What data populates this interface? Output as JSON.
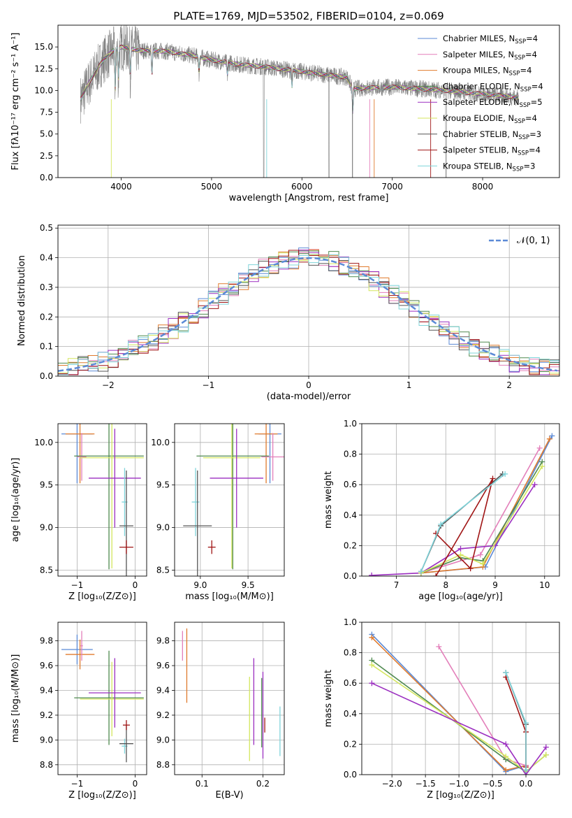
{
  "colors": {
    "chabrier_miles": "#5b8ad6",
    "salpeter_miles": "#e37fba",
    "kroupa_miles": "#e07b2e",
    "chabrier_elodie": "#4f8a4f",
    "salpeter_elodie": "#9b2fc0",
    "kroupa_elodie": "#d4e65e",
    "chabrier_stelib": "#555555",
    "salpeter_stelib": "#a01515",
    "kroupa_stelib": "#7fd4da",
    "spectrum": "#808080"
  },
  "chart_data": [
    {
      "id": "spectrum",
      "type": "line",
      "title": "PLATE=1769, MJD=53502, FIBERID=0104, z=0.069",
      "xlabel": "wavelength [Angstrom, rest frame]",
      "ylabel": "Flux [fλ10⁻¹⁷ erg cm⁻² s⁻¹ A⁻¹]",
      "xlim": [
        3300,
        8850
      ],
      "ylim": [
        0,
        17.5
      ],
      "xticks": [
        "4000",
        "5000",
        "6000",
        "7000",
        "8000"
      ],
      "yticks": [
        "0.0",
        "2.5",
        "5.0",
        "7.5",
        "10.0",
        "12.5",
        "15.0"
      ],
      "legend_position": "upper-right",
      "legend": [
        {
          "key": "chabrier_miles",
          "label": "Chabrier MILES, N",
          "sub": "SSP",
          "suffix": "=4"
        },
        {
          "key": "salpeter_miles",
          "label": "Salpeter MILES, N",
          "sub": "SSP",
          "suffix": "=4"
        },
        {
          "key": "kroupa_miles",
          "label": "Kroupa MILES, N",
          "sub": "SSP",
          "suffix": "=4"
        },
        {
          "key": "chabrier_elodie",
          "label": "Chabrier ELODIE, N",
          "sub": "SSP",
          "suffix": "=4"
        },
        {
          "key": "salpeter_elodie",
          "label": "Salpeter ELODIE, N",
          "sub": "SSP",
          "suffix": "=5"
        },
        {
          "key": "kroupa_elodie",
          "label": "Kroupa ELODIE, N",
          "sub": "SSP",
          "suffix": "=4"
        },
        {
          "key": "chabrier_stelib",
          "label": "Chabrier STELIB, N",
          "sub": "SSP",
          "suffix": "=3"
        },
        {
          "key": "salpeter_stelib",
          "label": "Salpeter STELIB, N",
          "sub": "SSP",
          "suffix": "=4"
        },
        {
          "key": "kroupa_stelib",
          "label": "Kroupa STELIB, N",
          "sub": "SSP",
          "suffix": "=3"
        }
      ],
      "continuum": {
        "x": [
          3550,
          3650,
          3800,
          3900,
          4000,
          4200,
          4500,
          4800,
          5000,
          5300,
          5600,
          5900,
          6200,
          6500,
          6560,
          6700,
          7000,
          7300,
          7600,
          8000,
          8400
        ],
        "y": [
          9.0,
          11.0,
          13.5,
          14.5,
          15.0,
          14.6,
          14.5,
          14.0,
          13.5,
          13.0,
          12.7,
          12.3,
          11.9,
          11.5,
          10.2,
          10.3,
          10.4,
          10.2,
          10.0,
          9.6,
          9.2
        ]
      }
    },
    {
      "id": "residuals",
      "type": "line",
      "xlabel": "(data-model)/error",
      "ylabel": "Normed distribution",
      "xlim": [
        -2.5,
        2.5
      ],
      "ylim": [
        0,
        0.51
      ],
      "xticks": [
        "−2",
        "−1",
        "0",
        "1",
        "2"
      ],
      "yticks": [
        "0.0",
        "0.1",
        "0.2",
        "0.3",
        "0.4",
        "0.5"
      ],
      "grid": true,
      "legend_position": "upper-right",
      "reference_label": "𝒩(0, 1)",
      "reference": {
        "mean": 0,
        "sigma": 1
      }
    },
    {
      "id": "age_vs_Z",
      "type": "scatter",
      "xlabel": "Z [log₁₀(Z/Z⊙)]",
      "ylabel": "age  [log₁₀(age/yr)]",
      "xlim": [
        -1.33,
        0.2
      ],
      "ylim": [
        8.43,
        10.22
      ],
      "xticks": [
        "−1",
        "0"
      ],
      "yticks": [
        "8.5",
        "9.0",
        "9.5",
        "10.0"
      ],
      "grid": true,
      "points": [
        {
          "key": "chabrier_miles",
          "x": -1.0,
          "y": 10.1,
          "xerr": 0.27,
          "yerr": 0.58
        },
        {
          "key": "kroupa_miles",
          "x": -0.95,
          "y": 10.1,
          "xerr": 0.25,
          "yerr": 0.58
        },
        {
          "key": "salpeter_miles",
          "x": -0.92,
          "y": 9.83,
          "xerr": 0.08,
          "yerr": 0.28
        },
        {
          "key": "chabrier_elodie",
          "x": -0.45,
          "y": 9.84,
          "xerr": 0.6,
          "yerr": 1.33
        },
        {
          "key": "kroupa_elodie",
          "x": -0.4,
          "y": 9.82,
          "xerr": 0.55,
          "yerr": 1.3
        },
        {
          "key": "salpeter_elodie",
          "x": -0.35,
          "y": 9.58,
          "xerr": 0.45,
          "yerr": 0.58
        },
        {
          "key": "kroupa_stelib",
          "x": -0.18,
          "y": 9.3,
          "xerr": 0.05,
          "yerr": 0.4
        },
        {
          "key": "chabrier_stelib",
          "x": -0.15,
          "y": 9.02,
          "xerr": 0.12,
          "yerr": 0.65
        },
        {
          "key": "salpeter_stelib",
          "x": -0.15,
          "y": 8.77,
          "xerr": 0.12,
          "yerr": 0.08
        }
      ]
    },
    {
      "id": "age_vs_mass",
      "type": "scatter",
      "xlabel": "mass [log₁₀(M/M⊙)]",
      "ylabel": "",
      "xlim": [
        8.73,
        9.88
      ],
      "ylim": [
        8.43,
        10.22
      ],
      "xticks": [
        "9.0",
        "9.5"
      ],
      "yticks": [
        "8.5",
        "9.0",
        "9.5",
        "10.0"
      ],
      "grid": true,
      "points": [
        {
          "key": "chabrier_miles",
          "x": 9.73,
          "y": 10.1,
          "xerr": 0.12,
          "yerr": 0.58
        },
        {
          "key": "kroupa_miles",
          "x": 9.69,
          "y": 10.1,
          "xerr": 0.12,
          "yerr": 0.58
        },
        {
          "key": "salpeter_miles",
          "x": 9.76,
          "y": 9.83,
          "xerr": 0.12,
          "yerr": 0.28
        },
        {
          "key": "chabrier_elodie",
          "x": 9.34,
          "y": 9.84,
          "xerr": 0.38,
          "yerr": 1.33
        },
        {
          "key": "kroupa_elodie",
          "x": 9.33,
          "y": 9.82,
          "xerr": 0.3,
          "yerr": 1.3
        },
        {
          "key": "salpeter_elodie",
          "x": 9.38,
          "y": 9.58,
          "xerr": 0.28,
          "yerr": 0.58
        },
        {
          "key": "kroupa_stelib",
          "x": 8.95,
          "y": 9.3,
          "xerr": 0.04,
          "yerr": 0.4
        },
        {
          "key": "chabrier_stelib",
          "x": 8.97,
          "y": 9.02,
          "xerr": 0.15,
          "yerr": 0.65
        },
        {
          "key": "salpeter_stelib",
          "x": 9.12,
          "y": 8.77,
          "xerr": 0.04,
          "yerr": 0.08
        }
      ]
    },
    {
      "id": "massweight_vs_age",
      "type": "line",
      "xlabel": "age  [log₁₀(age/yr)]",
      "ylabel": "mass weight",
      "xlim": [
        6.3,
        10.3
      ],
      "ylim": [
        0,
        1
      ],
      "xticks": [
        "7",
        "8",
        "9",
        "10"
      ],
      "yticks": [
        "0.0",
        "0.2",
        "0.4",
        "0.6",
        "0.8",
        "1.0"
      ],
      "grid": true,
      "series": [
        {
          "key": "chabrier_miles",
          "x": [
            7.5,
            8.8,
            10.15
          ],
          "y": [
            0.02,
            0.06,
            0.92
          ]
        },
        {
          "key": "salpeter_miles",
          "x": [
            7.5,
            8.7,
            9.9
          ],
          "y": [
            0.02,
            0.14,
            0.84
          ]
        },
        {
          "key": "kroupa_miles",
          "x": [
            7.5,
            8.75,
            10.1
          ],
          "y": [
            0.02,
            0.06,
            0.9
          ]
        },
        {
          "key": "chabrier_elodie",
          "x": [
            7.5,
            8.3,
            8.75,
            9.95
          ],
          "y": [
            0.02,
            0.12,
            0.1,
            0.75
          ]
        },
        {
          "key": "salpeter_elodie",
          "x": [
            6.5,
            7.5,
            8.3,
            9.0,
            9.8
          ],
          "y": [
            0.005,
            0.02,
            0.18,
            0.2,
            0.6
          ]
        },
        {
          "key": "kroupa_elodie",
          "x": [
            7.5,
            8.3,
            8.75,
            9.95
          ],
          "y": [
            0.02,
            0.14,
            0.08,
            0.72
          ]
        },
        {
          "key": "chabrier_stelib",
          "x": [
            7.5,
            7.9,
            9.15
          ],
          "y": [
            0.03,
            0.33,
            0.67
          ]
        },
        {
          "key": "salpeter_stelib",
          "x": [
            7.8,
            8.5,
            8.95,
            7.8
          ],
          "y": [
            0.28,
            0.05,
            0.64,
            0.0
          ]
        },
        {
          "key": "kroupa_stelib",
          "x": [
            7.5,
            7.9,
            9.2
          ],
          "y": [
            0.03,
            0.34,
            0.67
          ]
        }
      ]
    },
    {
      "id": "mass_vs_Z",
      "type": "scatter",
      "xlabel": "Z [log₁₀(Z/Z⊙)]",
      "ylabel": "mass [log₁₀(M/M⊙)]",
      "xlim": [
        -1.33,
        0.2
      ],
      "ylim": [
        8.72,
        9.95
      ],
      "xticks": [
        "−1",
        "0"
      ],
      "yticks": [
        "8.8",
        "9.0",
        "9.2",
        "9.4",
        "9.6",
        "9.8"
      ],
      "grid": true,
      "points": [
        {
          "key": "chabrier_miles",
          "x": -1.0,
          "y": 9.73,
          "xerr": 0.27,
          "yerr": 0.12
        },
        {
          "key": "kroupa_miles",
          "x": -0.95,
          "y": 9.69,
          "xerr": 0.25,
          "yerr": 0.12
        },
        {
          "key": "salpeter_miles",
          "x": -0.92,
          "y": 9.76,
          "xerr": 0.02,
          "yerr": 0.12
        },
        {
          "key": "chabrier_elodie",
          "x": -0.45,
          "y": 9.34,
          "xerr": 0.6,
          "yerr": 0.38
        },
        {
          "key": "kroupa_elodie",
          "x": -0.4,
          "y": 9.33,
          "xerr": 0.55,
          "yerr": 0.3
        },
        {
          "key": "salpeter_elodie",
          "x": -0.35,
          "y": 9.38,
          "xerr": 0.45,
          "yerr": 0.28
        },
        {
          "key": "kroupa_stelib",
          "x": -0.18,
          "y": 8.95,
          "xerr": 0.05,
          "yerr": 0.06
        },
        {
          "key": "chabrier_stelib",
          "x": -0.15,
          "y": 8.97,
          "xerr": 0.12,
          "yerr": 0.15
        },
        {
          "key": "salpeter_stelib",
          "x": -0.15,
          "y": 9.12,
          "xerr": 0.06,
          "yerr": 0.04
        }
      ]
    },
    {
      "id": "mass_vs_ebv",
      "type": "scatter",
      "xlabel": "E(B-V)",
      "ylabel": "",
      "xlim": [
        0.055,
        0.235
      ],
      "ylim": [
        8.72,
        9.95
      ],
      "xticks": [
        "0.1",
        "0.2"
      ],
      "yticks": [
        "8.8",
        "9.0",
        "9.2",
        "9.4",
        "9.6",
        "9.8"
      ],
      "grid": true,
      "points": [
        {
          "key": "salpeter_miles",
          "x": 0.068,
          "y": 9.76,
          "yerr": 0.12
        },
        {
          "key": "kroupa_miles",
          "x": 0.075,
          "y": 9.6,
          "yerr": 0.3
        },
        {
          "key": "kroupa_elodie",
          "x": 0.178,
          "y": 9.17,
          "yerr": 0.34
        },
        {
          "key": "salpeter_elodie",
          "x": 0.185,
          "y": 9.31,
          "yerr": 0.35
        },
        {
          "key": "chabrier_elodie",
          "x": 0.198,
          "y": 9.22,
          "yerr": 0.28
        },
        {
          "key": "salpeter_elodie",
          "x": 0.2,
          "y": 9.2,
          "yerr": 0.35
        },
        {
          "key": "salpeter_stelib",
          "x": 0.203,
          "y": 9.12,
          "yerr": 0.06
        },
        {
          "key": "kroupa_stelib",
          "x": 0.228,
          "y": 9.07,
          "yerr": 0.2
        }
      ]
    },
    {
      "id": "massweight_vs_Z",
      "type": "line",
      "xlabel": "Z [log₁₀(Z/Z⊙)]",
      "ylabel": "mass weight",
      "xlim": [
        -2.45,
        0.5
      ],
      "ylim": [
        0,
        1
      ],
      "xticks": [
        "−2.0",
        "−1.5",
        "−1.0",
        "−0.5",
        "0.0"
      ],
      "yticks": [
        "0.0",
        "0.2",
        "0.4",
        "0.6",
        "0.8",
        "1.0"
      ],
      "grid": true,
      "series": [
        {
          "key": "chabrier_miles",
          "x": [
            -2.3,
            -0.3,
            0.0
          ],
          "y": [
            0.92,
            0.02,
            0.06
          ]
        },
        {
          "key": "kroupa_miles",
          "x": [
            -2.3,
            -0.3,
            0.0
          ],
          "y": [
            0.9,
            0.03,
            0.06
          ]
        },
        {
          "key": "salpeter_miles",
          "x": [
            -1.3,
            -0.3,
            0.0
          ],
          "y": [
            0.84,
            0.1,
            0.06
          ]
        },
        {
          "key": "chabrier_elodie",
          "x": [
            -2.3,
            -0.3,
            0.0,
            0.3
          ],
          "y": [
            0.75,
            0.1,
            0.02,
            0.13
          ]
        },
        {
          "key": "kroupa_elodie",
          "x": [
            -2.3,
            -0.3,
            0.0,
            0.3
          ],
          "y": [
            0.72,
            0.12,
            0.02,
            0.13
          ]
        },
        {
          "key": "salpeter_elodie",
          "x": [
            -2.3,
            -0.3,
            0.0,
            0.3
          ],
          "y": [
            0.6,
            0.2,
            0.0,
            0.18
          ]
        },
        {
          "key": "chabrier_stelib",
          "x": [
            -0.3,
            0.0,
            0.0
          ],
          "y": [
            0.67,
            0.33,
            0.03
          ]
        },
        {
          "key": "salpeter_stelib",
          "x": [
            -0.3,
            0.0,
            0.0
          ],
          "y": [
            0.64,
            0.28,
            0.05
          ]
        },
        {
          "key": "kroupa_stelib",
          "x": [
            -0.3,
            0.0,
            0.0
          ],
          "y": [
            0.67,
            0.34,
            0.03
          ]
        }
      ]
    }
  ]
}
